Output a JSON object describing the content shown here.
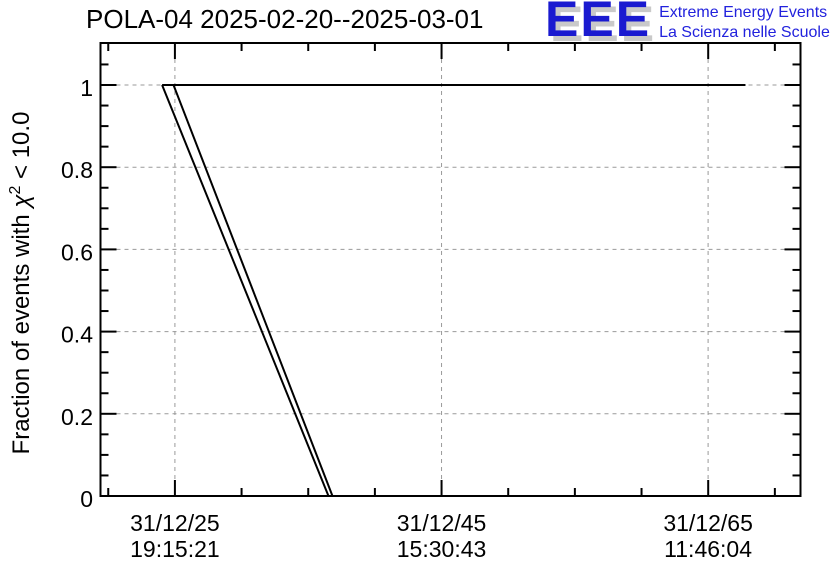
{
  "title": "POLA-04 2025-02-20--2025-03-01",
  "logo": {
    "acronym": "EEE",
    "line1": "Extreme Energy Events",
    "line2": "La Scienza nelle Scuole",
    "letters_color": "#1a1ad0",
    "text_color": "#2222dd",
    "shadow_color": "#c9c9c9"
  },
  "y_axis": {
    "label_prefix": "Fraction of events with ",
    "label_chi": "χ",
    "label_sup": "2",
    "label_suffix": " < 10.0"
  },
  "chart_data": {
    "type": "line",
    "title": "POLA-04 2025-02-20--2025-03-01",
    "ylabel": "Fraction of events with chi^2 < 10.0",
    "xlabel": "",
    "ylim": [
      0,
      1.1
    ],
    "grid": true,
    "legend": "none",
    "colors": {
      "axis": "#000000",
      "grid": "#9a9a9a",
      "line": "#000000"
    },
    "y_ticks": {
      "majors": [
        {
          "value": 0,
          "label": "0"
        },
        {
          "value": 0.2,
          "label": "0.2"
        },
        {
          "value": 0.4,
          "label": "0.4"
        },
        {
          "value": 0.6,
          "label": "0.6"
        },
        {
          "value": 0.8,
          "label": "0.8"
        },
        {
          "value": 1,
          "label": "1"
        }
      ],
      "minor_step": 0.05
    },
    "x_ticks": {
      "majors": [
        {
          "frac": 0.1063,
          "date": "31/12/25",
          "time": "19:15:21"
        },
        {
          "frac": 0.4872,
          "date": "31/12/45",
          "time": "15:30:43"
        },
        {
          "frac": 0.868,
          "date": "31/12/65",
          "time": "11:46:04"
        }
      ],
      "minor_step_frac": 0.09523,
      "minor_k_range": [
        -1,
        9
      ],
      "major_k": [
        0,
        4,
        8
      ]
    },
    "series": [
      {
        "name": "fraction-flat",
        "points": [
          [
            0.088,
            1
          ],
          [
            0.9214,
            1
          ]
        ]
      },
      {
        "name": "fraction-drop-1",
        "points": [
          [
            0.088,
            1
          ],
          [
            0.3257,
            0
          ]
        ]
      },
      {
        "name": "fraction-drop-2",
        "points": [
          [
            0.1043,
            1
          ],
          [
            0.3314,
            0
          ]
        ]
      }
    ]
  }
}
